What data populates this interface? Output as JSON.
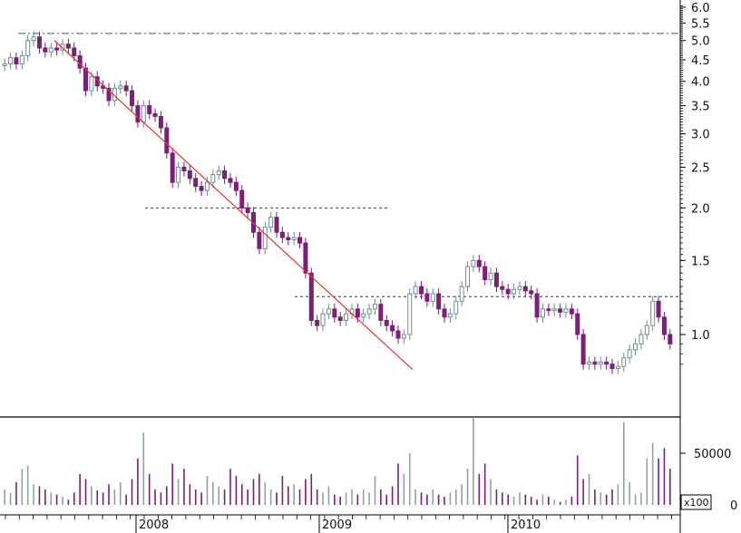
{
  "chart_data": {
    "type": "candlestick",
    "price_axis": {
      "scale": "log",
      "ticks": [
        6.0,
        5.5,
        5.0,
        4.5,
        4.0,
        3.5,
        3.0,
        2.5,
        2.0,
        1.5,
        1.0
      ],
      "tick_labels": [
        "6.0",
        "5.5",
        "5.0",
        "4.5",
        "4.0",
        "3.5",
        "3.0",
        "2.5",
        "2.0",
        "1.5",
        "1.0"
      ]
    },
    "volume_axis": {
      "ticks": [
        0,
        50000
      ],
      "tick_labels": [
        "0",
        "50000"
      ],
      "multiplier_label": "x100"
    },
    "x_axis": {
      "labels": [
        "2008",
        "2009",
        "2010"
      ]
    },
    "price_series": [
      4.4,
      4.55,
      4.4,
      4.6,
      5.0,
      5.1,
      4.8,
      4.7,
      4.8,
      4.75,
      4.9,
      4.8,
      4.6,
      4.3,
      3.8,
      4.1,
      3.9,
      3.85,
      3.6,
      3.85,
      3.9,
      3.8,
      3.5,
      3.2,
      3.5,
      3.35,
      3.3,
      3.1,
      2.7,
      2.3,
      2.5,
      2.45,
      2.35,
      2.25,
      2.2,
      2.3,
      2.4,
      2.45,
      2.35,
      2.3,
      2.2,
      2.0,
      1.95,
      1.75,
      1.6,
      1.8,
      1.9,
      1.75,
      1.7,
      1.68,
      1.7,
      1.65,
      1.4,
      1.08,
      1.05,
      1.12,
      1.15,
      1.1,
      1.08,
      1.12,
      1.15,
      1.1,
      1.12,
      1.15,
      1.18,
      1.08,
      1.05,
      1.02,
      0.98,
      1.0,
      1.25,
      1.3,
      1.25,
      1.2,
      1.25,
      1.15,
      1.1,
      1.12,
      1.2,
      1.3,
      1.45,
      1.5,
      1.45,
      1.35,
      1.4,
      1.3,
      1.28,
      1.25,
      1.28,
      1.3,
      1.27,
      1.25,
      1.1,
      1.15,
      1.14,
      1.15,
      1.13,
      1.15,
      1.12,
      1.0,
      0.85,
      0.86,
      0.85,
      0.86,
      0.85,
      0.83,
      0.84,
      0.88,
      0.92,
      0.95,
      1.0,
      1.05,
      1.2,
      1.1,
      1.0,
      0.95
    ],
    "volume_series": [
      15000,
      12000,
      22000,
      35000,
      38000,
      20000,
      18000,
      15000,
      12000,
      10000,
      8000,
      5000,
      12000,
      30000,
      25000,
      18000,
      14000,
      12000,
      20000,
      15000,
      22000,
      10000,
      25000,
      45000,
      70000,
      30000,
      15000,
      12000,
      18000,
      40000,
      25000,
      35000,
      20000,
      15000,
      12000,
      28000,
      22000,
      18000,
      15000,
      35000,
      28000,
      20000,
      15000,
      25000,
      30000,
      22000,
      15000,
      12000,
      28000,
      18000,
      20000,
      15000,
      25000,
      30000,
      15000,
      12000,
      18000,
      10000,
      8000,
      12000,
      15000,
      10000,
      15000,
      12000,
      28000,
      15000,
      10000,
      18000,
      40000,
      30000,
      50000,
      15000,
      12000,
      10000,
      15000,
      10000,
      8000,
      12000,
      15000,
      20000,
      35000,
      85000,
      30000,
      40000,
      25000,
      15000,
      12000,
      10000,
      8000,
      12000,
      10000,
      8000,
      5000,
      10000,
      8000,
      5000,
      3000,
      5000,
      8000,
      48000,
      25000,
      30000,
      15000,
      12000,
      10000,
      15000,
      20000,
      80000,
      22000,
      10000,
      12000,
      45000,
      60000,
      45000,
      55000,
      35000
    ],
    "reference_lines": [
      {
        "kind": "resistance",
        "style": "dash-dot",
        "value": 5.2
      },
      {
        "kind": "support",
        "style": "dotted",
        "value": 2.0
      },
      {
        "kind": "resistance",
        "style": "dotted",
        "value": 1.23
      },
      {
        "kind": "downtrend",
        "style": "solid",
        "color": "#e8322a"
      }
    ],
    "colors": {
      "down_candle": "#7a1f7a",
      "up_candle": "#6f8d8d",
      "reference": "#1f2fbf",
      "trendline": "#e8322a"
    }
  }
}
